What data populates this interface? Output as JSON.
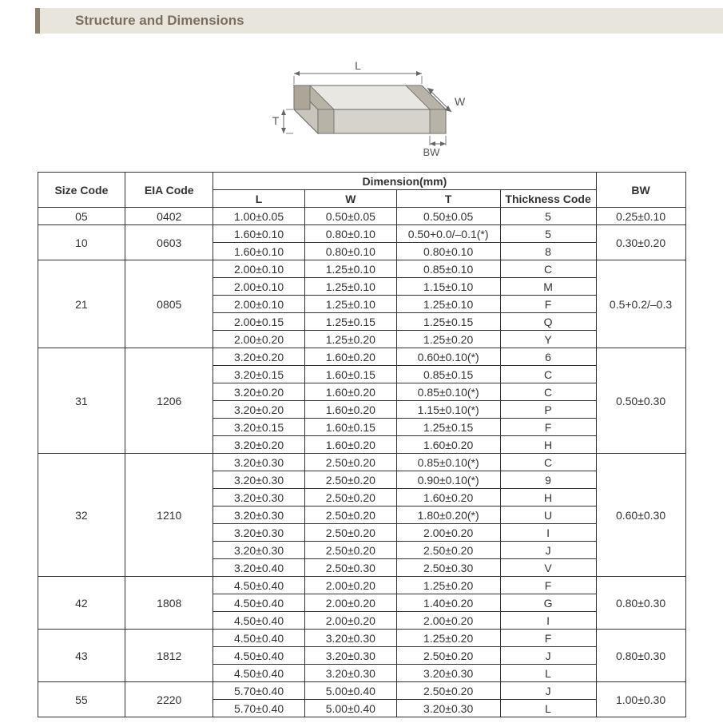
{
  "header": {
    "title": "Structure and Dimensions"
  },
  "diagram": {
    "labels": {
      "L": "L",
      "W": "W",
      "T": "T",
      "BW": "BW"
    },
    "stroke": "#666666",
    "fill_top": "#e9e7e2",
    "fill_front": "#d6d3cc",
    "fill_side": "#c9c5bc",
    "band_fill": "#b8b3a7"
  },
  "table": {
    "header": {
      "size_code": "Size Code",
      "eia_code": "EIA Code",
      "dimension": "Dimension(mm)",
      "L": "L",
      "W": "W",
      "T": "T",
      "thickness_code": "Thickness  Code",
      "BW": "BW"
    },
    "groups": [
      {
        "size": "05",
        "eia": "0402",
        "rows": [
          {
            "L": "1.00±0.05",
            "W": "0.50±0.05",
            "T": "0.50±0.05",
            "tc": "5"
          }
        ],
        "bw": "0.25±0.10"
      },
      {
        "size": "10",
        "eia": "0603",
        "rows": [
          {
            "L": "1.60±0.10",
            "W": "0.80±0.10",
            "T": "0.50+0.0/–0.1(*)",
            "tc": "5"
          },
          {
            "L": "1.60±0.10",
            "W": "0.80±0.10",
            "T": "0.80±0.10",
            "tc": "8"
          }
        ],
        "bw": "0.30±0.20"
      },
      {
        "size": "21",
        "eia": "0805",
        "rows": [
          {
            "L": "2.00±0.10",
            "W": "1.25±0.10",
            "T": "0.85±0.10",
            "tc": "C"
          },
          {
            "L": "2.00±0.10",
            "W": "1.25±0.10",
            "T": "1.15±0.10",
            "tc": "M"
          },
          {
            "L": "2.00±0.10",
            "W": "1.25±0.10",
            "T": "1.25±0.10",
            "tc": "F"
          },
          {
            "L": "2.00±0.15",
            "W": "1.25±0.15",
            "T": "1.25±0.15",
            "tc": "Q"
          },
          {
            "L": "2.00±0.20",
            "W": "1.25±0.20",
            "T": "1.25±0.20",
            "tc": "Y"
          }
        ],
        "bw": "0.5+0.2/–0.3"
      },
      {
        "size": "31",
        "eia": "1206",
        "rows": [
          {
            "L": "3.20±0.20",
            "W": "1.60±0.20",
            "T": "0.60±0.10(*)",
            "tc": "6"
          },
          {
            "L": "3.20±0.15",
            "W": "1.60±0.15",
            "T": "0.85±0.15",
            "tc": "C"
          },
          {
            "L": "3.20±0.20",
            "W": "1.60±0.20",
            "T": "0.85±0.10(*)",
            "tc": "C"
          },
          {
            "L": "3.20±0.20",
            "W": "1.60±0.20",
            "T": "1.15±0.10(*)",
            "tc": "P"
          },
          {
            "L": "3.20±0.15",
            "W": "1.60±0.15",
            "T": "1.25±0.15",
            "tc": "F"
          },
          {
            "L": "3.20±0.20",
            "W": "1.60±0.20",
            "T": "1.60±0.20",
            "tc": "H"
          }
        ],
        "bw": "0.50±0.30"
      },
      {
        "size": "32",
        "eia": "1210",
        "rows": [
          {
            "L": "3.20±0.30",
            "W": "2.50±0.20",
            "T": "0.85±0.10(*)",
            "tc": "C"
          },
          {
            "L": "3.20±0.30",
            "W": "2.50±0.20",
            "T": "0.90±0.10(*)",
            "tc": "9"
          },
          {
            "L": "3.20±0.30",
            "W": "2.50±0.20",
            "T": "1.60±0.20",
            "tc": "H"
          },
          {
            "L": "3.20±0.30",
            "W": "2.50±0.20",
            "T": "1.80±0.20(*)",
            "tc": "U"
          },
          {
            "L": "3.20±0.30",
            "W": "2.50±0.20",
            "T": "2.00±0.20",
            "tc": "I"
          },
          {
            "L": "3.20±0.30",
            "W": "2.50±0.20",
            "T": "2.50±0.20",
            "tc": "J"
          },
          {
            "L": "3.20±0.40",
            "W": "2.50±0.30",
            "T": "2.50±0.30",
            "tc": "V"
          }
        ],
        "bw": "0.60±0.30"
      },
      {
        "size": "42",
        "eia": "1808",
        "rows": [
          {
            "L": "4.50±0.40",
            "W": "2.00±0.20",
            "T": "1.25±0.20",
            "tc": "F"
          },
          {
            "L": "4.50±0.40",
            "W": "2.00±0.20",
            "T": "1.40±0.20",
            "tc": "G"
          },
          {
            "L": "4.50±0.40",
            "W": "2.00±0.20",
            "T": "2.00±0.20",
            "tc": "I"
          }
        ],
        "bw": "0.80±0.30"
      },
      {
        "size": "43",
        "eia": "1812",
        "rows": [
          {
            "L": "4.50±0.40",
            "W": "3.20±0.30",
            "T": "1.25±0.20",
            "tc": "F"
          },
          {
            "L": "4.50±0.40",
            "W": "3.20±0.30",
            "T": "2.50±0.20",
            "tc": "J"
          },
          {
            "L": "4.50±0.40",
            "W": "3.20±0.30",
            "T": "3.20±0.30",
            "tc": "L"
          }
        ],
        "bw": "0.80±0.30"
      },
      {
        "size": "55",
        "eia": "2220",
        "rows": [
          {
            "L": "5.70±0.40",
            "W": "5.00±0.40",
            "T": "2.50±0.20",
            "tc": "J"
          },
          {
            "L": "5.70±0.40",
            "W": "5.00±0.40",
            "T": "3.20±0.30",
            "tc": "L"
          }
        ],
        "bw": "1.00±0.30"
      }
    ]
  }
}
